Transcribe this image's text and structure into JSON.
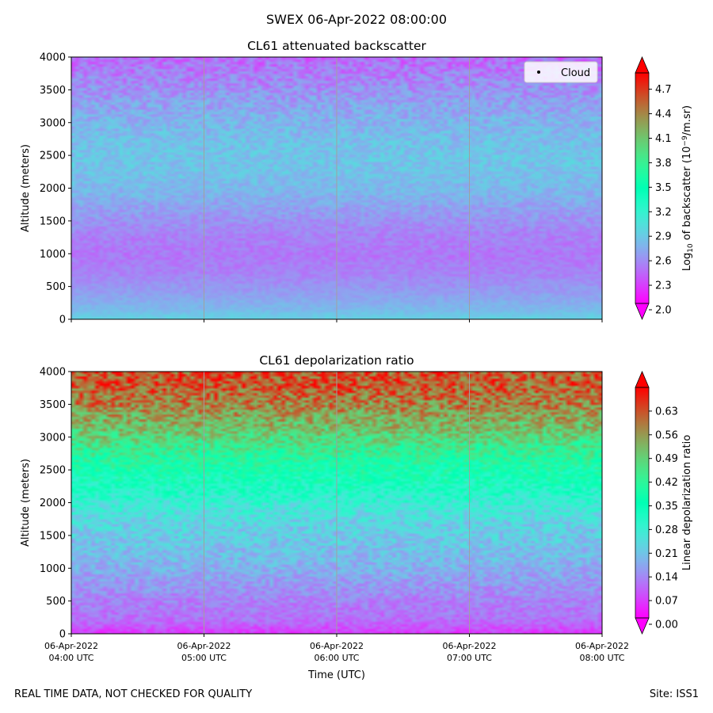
{
  "suptitle": "SWEX 06-Apr-2022 08:00:00",
  "footer": {
    "left": "REAL TIME DATA, NOT CHECKED FOR QUALITY",
    "right": "Site: ISS1"
  },
  "colors": {
    "colormap": "rainbow",
    "gridline": "#a0a0a0",
    "background": "#ffffff"
  },
  "chart_data": [
    {
      "type": "heatmap",
      "title": "CL61 attenuated backscatter",
      "ylabel": "Altitude (meters)",
      "xlabel": "",
      "show_x_tick_labels": false,
      "xlim": [
        "06-Apr-2022 04:00 UTC",
        "06-Apr-2022 08:00 UTC"
      ],
      "ylim": [
        0,
        4000
      ],
      "yticks": [
        "0",
        "500",
        "1000",
        "1500",
        "2000",
        "2500",
        "3000",
        "3500",
        "4000"
      ],
      "grid": "vertical lines at hour ticks",
      "legend": {
        "entries": [
          "Cloud"
        ],
        "position": "top-right"
      },
      "colorbar": {
        "label": "Log10 of backscatter (10^-9/m.sr)",
        "label_parts": {
          "a": "Log",
          "b": "10",
          "c": " of backscatter (10",
          "d": "−9",
          "e": "/m.sr)"
        },
        "range": [
          2.0,
          4.9
        ],
        "ticks": [
          "2.0",
          "2.3",
          "2.6",
          "2.9",
          "3.2",
          "3.5",
          "3.8",
          "4.1",
          "4.4",
          "4.7"
        ],
        "extend": "both"
      },
      "profile": {
        "altitude_m": [
          0,
          150,
          400,
          700,
          1000,
          1300,
          1600,
          1900,
          2200,
          2500,
          2800,
          3100,
          3400,
          3700,
          4000
        ],
        "typical_value": [
          2.9,
          2.75,
          2.62,
          2.5,
          2.45,
          2.5,
          2.6,
          2.72,
          2.8,
          2.82,
          2.78,
          2.7,
          2.6,
          2.5,
          2.4
        ]
      }
    },
    {
      "type": "heatmap",
      "title": "CL61 depolarization ratio",
      "ylabel": "Altitude (meters)",
      "xlabel": "Time (UTC)",
      "xlim": [
        "06-Apr-2022 04:00 UTC",
        "06-Apr-2022 08:00 UTC"
      ],
      "xticks": [
        {
          "date": "06-Apr-2022",
          "time": "04:00 UTC"
        },
        {
          "date": "06-Apr-2022",
          "time": "05:00 UTC"
        },
        {
          "date": "06-Apr-2022",
          "time": "06:00 UTC"
        },
        {
          "date": "06-Apr-2022",
          "time": "07:00 UTC"
        },
        {
          "date": "06-Apr-2022",
          "time": "08:00 UTC"
        }
      ],
      "ylim": [
        0,
        4000
      ],
      "yticks": [
        "0",
        "500",
        "1000",
        "1500",
        "2000",
        "2500",
        "3000",
        "3500",
        "4000"
      ],
      "grid": "vertical lines at hour ticks",
      "colorbar": {
        "label": "Linear depolarization ratio",
        "range": [
          0.0,
          0.7
        ],
        "ticks": [
          "0.00",
          "0.07",
          "0.14",
          "0.21",
          "0.28",
          "0.35",
          "0.42",
          "0.49",
          "0.56",
          "0.63"
        ],
        "extend": "both"
      },
      "profile": {
        "altitude_m": [
          0,
          200,
          500,
          800,
          1100,
          1400,
          1700,
          2000,
          2300,
          2600,
          2900,
          3200,
          3500,
          3800,
          4000
        ],
        "typical_value": [
          0.05,
          0.1,
          0.12,
          0.15,
          0.18,
          0.2,
          0.22,
          0.27,
          0.33,
          0.38,
          0.45,
          0.52,
          0.58,
          0.62,
          0.63
        ]
      }
    }
  ]
}
